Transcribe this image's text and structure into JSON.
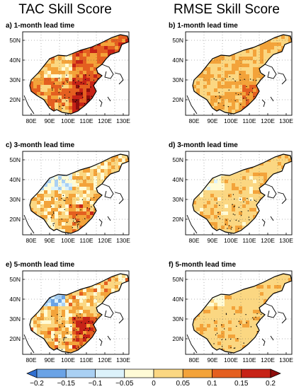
{
  "figure": {
    "column_titles": [
      "TAC Skill Score",
      "RMSE Skill Score"
    ],
    "panels": [
      {
        "title": "a) 1-month lead time",
        "metric": "TAC",
        "lead": 1
      },
      {
        "title": "b) 1-month lead time",
        "metric": "RMSE",
        "lead": 1
      },
      {
        "title": "c) 3-month lead time",
        "metric": "TAC",
        "lead": 3
      },
      {
        "title": "d) 3-month lead time",
        "metric": "RMSE",
        "lead": 3
      },
      {
        "title": "e) 5-month lead time",
        "metric": "TAC",
        "lead": 5
      },
      {
        "title": "f) 5-month lead time",
        "metric": "RMSE",
        "lead": 5
      }
    ],
    "lat_ticks": [
      "50N",
      "40N",
      "30N",
      "20N"
    ],
    "lon_ticks": [
      "80E",
      "90E",
      "100E",
      "110E",
      "120E",
      "130E"
    ],
    "colorbar": {
      "labels": [
        "-0.2",
        "-0.15",
        "-0.1",
        "-0.05",
        "0",
        "0.05",
        "0.1",
        "0.15",
        "0.2"
      ],
      "colors": [
        "#2f6fd0",
        "#6aa3e6",
        "#a9d0f3",
        "#dcf2fb",
        "#fffbd6",
        "#fbd782",
        "#f3a33a",
        "#e45f20",
        "#c72317",
        "#8e0e0d"
      ]
    }
  }
}
